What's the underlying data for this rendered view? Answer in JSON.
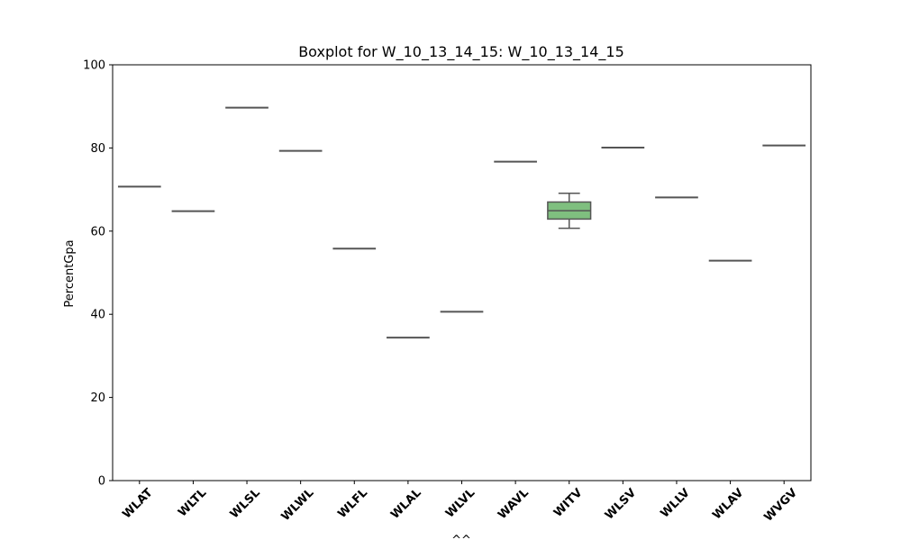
{
  "chart_data": {
    "type": "boxplot",
    "title": "Boxplot for W_10_13_14_15: W_10_13_14_15",
    "xlabel": "^^",
    "ylabel": "PercentGpa",
    "ylim": [
      0,
      100
    ],
    "yticks": [
      0,
      20,
      40,
      60,
      80,
      100
    ],
    "grid": false,
    "categories": [
      "WLAT",
      "WLTL",
      "WLSL",
      "WLWL",
      "WLFL",
      "WLAL",
      "WLVL",
      "WAVL",
      "WITV",
      "WLSV",
      "WLLV",
      "WLAV",
      "WVGV"
    ],
    "boxes": [
      {
        "category": "WLAT",
        "min": 70.7,
        "q1": 70.7,
        "median": 70.7,
        "q3": 70.7,
        "max": 70.7
      },
      {
        "category": "WLTL",
        "min": 64.8,
        "q1": 64.8,
        "median": 64.8,
        "q3": 64.8,
        "max": 64.8
      },
      {
        "category": "WLSL",
        "min": 89.7,
        "q1": 89.7,
        "median": 89.7,
        "q3": 89.7,
        "max": 89.7
      },
      {
        "category": "WLWL",
        "min": 79.3,
        "q1": 79.3,
        "median": 79.3,
        "q3": 79.3,
        "max": 79.3
      },
      {
        "category": "WLFL",
        "min": 55.8,
        "q1": 55.8,
        "median": 55.8,
        "q3": 55.8,
        "max": 55.8
      },
      {
        "category": "WLAL",
        "min": 34.4,
        "q1": 34.4,
        "median": 34.4,
        "q3": 34.4,
        "max": 34.4
      },
      {
        "category": "WLVL",
        "min": 40.6,
        "q1": 40.6,
        "median": 40.6,
        "q3": 40.6,
        "max": 40.6
      },
      {
        "category": "WAVL",
        "min": 76.7,
        "q1": 76.7,
        "median": 76.7,
        "q3": 76.7,
        "max": 76.7
      },
      {
        "category": "WITV",
        "min": 60.7,
        "q1": 62.9,
        "median": 64.9,
        "q3": 67.0,
        "max": 69.1
      },
      {
        "category": "WLSV",
        "min": 80.1,
        "q1": 80.1,
        "median": 80.1,
        "q3": 80.1,
        "max": 80.1
      },
      {
        "category": "WLLV",
        "min": 68.1,
        "q1": 68.1,
        "median": 68.1,
        "q3": 68.1,
        "max": 68.1
      },
      {
        "category": "WLAV",
        "min": 52.9,
        "q1": 52.9,
        "median": 52.9,
        "q3": 52.9,
        "max": 52.9
      },
      {
        "category": "WVGV",
        "min": 80.6,
        "q1": 80.6,
        "median": 80.6,
        "q3": 80.6,
        "max": 80.6
      }
    ],
    "colors": {
      "box_fill": "#7fbf7f",
      "box_line": "#555555",
      "axis": "#000000"
    }
  }
}
